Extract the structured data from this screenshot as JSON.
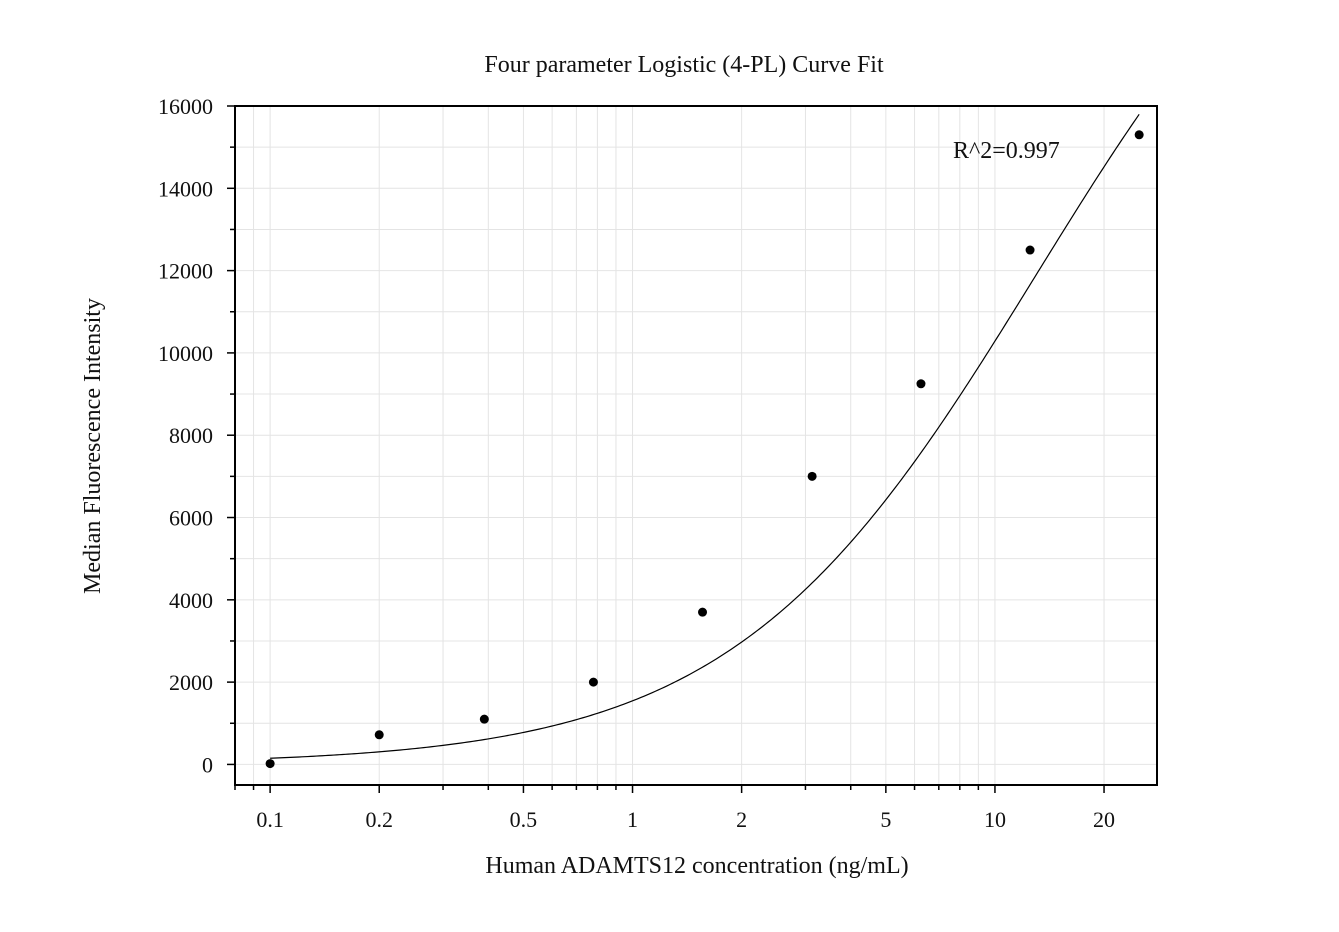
{
  "chart_data": {
    "type": "scatter",
    "title": "Four parameter Logistic (4-PL) Curve Fit",
    "xlabel": "Human ADAMTS12 concentration (ng/mL)",
    "ylabel": "Median Fluorescence Intensity",
    "x_scale": "log",
    "xlim": [
      0.08,
      28
    ],
    "ylim": [
      -500,
      16000
    ],
    "x_ticks": [
      0.1,
      0.2,
      0.5,
      1,
      2,
      5,
      10,
      20
    ],
    "x_tick_labels": [
      "0.1",
      "0.2",
      "0.5",
      "1",
      "2",
      "5",
      "10",
      "20"
    ],
    "y_ticks": [
      0,
      2000,
      4000,
      6000,
      8000,
      10000,
      12000,
      14000,
      16000
    ],
    "y_tick_labels": [
      "0",
      "2000",
      "4000",
      "6000",
      "8000",
      "10000",
      "12000",
      "14000",
      "16000"
    ],
    "grid": true,
    "annotation": "R^2=0.997",
    "points": {
      "x": [
        0.1,
        0.2,
        0.39,
        0.78,
        1.56,
        3.13,
        6.25,
        12.5,
        25
      ],
      "y": [
        20,
        720,
        1100,
        2000,
        3700,
        7000,
        9250,
        12500,
        15300
      ]
    },
    "fit": {
      "model": "4PL",
      "a": 0,
      "b": 1.04,
      "c": 13,
      "d": 23800
    },
    "colors": {
      "points": "#000000",
      "curve": "#000000",
      "grid": "#e4e4e4",
      "axis": "#000000"
    }
  }
}
